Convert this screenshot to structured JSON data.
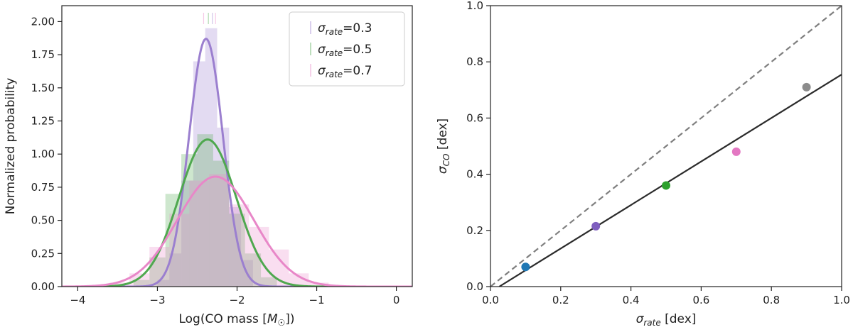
{
  "colors": {
    "purple": "#9b7fcf",
    "green": "#4fa84f",
    "pink": "#e887c8",
    "blue": "#1f77b4",
    "point_purple": "#7f5fbf",
    "point_green": "#2ca02c",
    "point_pink": "#e377c2",
    "point_gray": "#8c8c8c",
    "fit_line": "#2b2b2b",
    "identity_line": "#7f7f7f"
  },
  "chart_data": [
    {
      "type": "histogram",
      "xlabel": "Log(CO mass [",
      "xlabel_unit": "M",
      "xlabel_unit_sub": "☉",
      "xlabel_tail": "])",
      "ylabel": "Normalized probability",
      "xlim": [
        -4.2,
        0.2
      ],
      "ylim": [
        0,
        2.12
      ],
      "xticks": [
        -4,
        -3,
        -2,
        -1,
        0
      ],
      "xtick_labels": [
        "−4",
        "−3",
        "−2",
        "−1",
        "0"
      ],
      "yticks": [
        0,
        0.25,
        0.5,
        0.75,
        1.0,
        1.25,
        1.5,
        1.75,
        2.0
      ],
      "ytick_labels": [
        "0.00",
        "0.25",
        "0.50",
        "0.75",
        "1.00",
        "1.25",
        "1.50",
        "1.75",
        "2.00"
      ],
      "legend": {
        "position": "top-right",
        "entries": [
          {
            "symbol": "σ",
            "sub": "rate",
            "value": "=0.3",
            "color": "purple"
          },
          {
            "symbol": "σ",
            "sub": "rate",
            "value": "=0.5",
            "color": "green"
          },
          {
            "symbol": "σ",
            "sub": "rate",
            "value": "=0.7",
            "color": "pink"
          }
        ]
      },
      "series": [
        {
          "name": "σrate=0.3",
          "color": "purple",
          "gaussian": {
            "mean": -2.39,
            "sigma": 0.213,
            "peak": 1.87
          },
          "bins": [
            {
              "x0": -3.0,
              "x1": -2.85,
              "h": 0.05
            },
            {
              "x0": -2.85,
              "x1": -2.7,
              "h": 0.25
            },
            {
              "x0": -2.7,
              "x1": -2.55,
              "h": 0.8
            },
            {
              "x0": -2.55,
              "x1": -2.4,
              "h": 1.7
            },
            {
              "x0": -2.4,
              "x1": -2.25,
              "h": 1.95
            },
            {
              "x0": -2.25,
              "x1": -2.1,
              "h": 1.2
            },
            {
              "x0": -2.1,
              "x1": -1.95,
              "h": 0.6
            },
            {
              "x0": -1.95,
              "x1": -1.8,
              "h": 0.2
            }
          ]
        },
        {
          "name": "σrate=0.5",
          "color": "green",
          "gaussian": {
            "mean": -2.37,
            "sigma": 0.36,
            "peak": 1.11
          },
          "bins": [
            {
              "x0": -3.3,
              "x1": -3.1,
              "h": 0.05
            },
            {
              "x0": -3.1,
              "x1": -2.9,
              "h": 0.22
            },
            {
              "x0": -2.9,
              "x1": -2.7,
              "h": 0.7
            },
            {
              "x0": -2.7,
              "x1": -2.5,
              "h": 1.0
            },
            {
              "x0": -2.5,
              "x1": -2.3,
              "h": 1.15
            },
            {
              "x0": -2.3,
              "x1": -2.1,
              "h": 0.95
            },
            {
              "x0": -2.1,
              "x1": -1.9,
              "h": 0.55
            },
            {
              "x0": -1.9,
              "x1": -1.7,
              "h": 0.25
            },
            {
              "x0": -1.7,
              "x1": -1.5,
              "h": 0.07
            }
          ]
        },
        {
          "name": "σrate=0.7",
          "color": "pink",
          "gaussian": {
            "mean": -2.27,
            "sigma": 0.48,
            "peak": 0.83
          },
          "bins": [
            {
              "x0": -3.6,
              "x1": -3.35,
              "h": 0.03
            },
            {
              "x0": -3.35,
              "x1": -3.1,
              "h": 0.1
            },
            {
              "x0": -3.1,
              "x1": -2.85,
              "h": 0.3
            },
            {
              "x0": -2.85,
              "x1": -2.6,
              "h": 0.55
            },
            {
              "x0": -2.6,
              "x1": -2.35,
              "h": 0.8
            },
            {
              "x0": -2.35,
              "x1": -2.1,
              "h": 0.85
            },
            {
              "x0": -2.1,
              "x1": -1.85,
              "h": 0.62
            },
            {
              "x0": -1.85,
              "x1": -1.6,
              "h": 0.45
            },
            {
              "x0": -1.6,
              "x1": -1.35,
              "h": 0.28
            },
            {
              "x0": -1.35,
              "x1": -1.1,
              "h": 0.1
            },
            {
              "x0": -1.1,
              "x1": -0.85,
              "h": 0.03
            }
          ]
        }
      ]
    },
    {
      "type": "scatter",
      "xlabel": "σ",
      "xlabel_sub": "rate",
      "xlabel_tail": " [dex]",
      "ylabel": "σ",
      "ylabel_sub": "CO",
      "ylabel_tail": " [dex]",
      "xlim": [
        0,
        1
      ],
      "ylim": [
        0,
        1
      ],
      "xticks": [
        0,
        0.2,
        0.4,
        0.6,
        0.8,
        1.0
      ],
      "xtick_labels": [
        "0.0",
        "0.2",
        "0.4",
        "0.6",
        "0.8",
        "1.0"
      ],
      "yticks": [
        0,
        0.2,
        0.4,
        0.6,
        0.8,
        1.0
      ],
      "ytick_labels": [
        "0.0",
        "0.2",
        "0.4",
        "0.6",
        "0.8",
        "1.0"
      ],
      "points": [
        {
          "x": 0.1,
          "y": 0.07,
          "color": "blue"
        },
        {
          "x": 0.3,
          "y": 0.215,
          "color": "point_purple"
        },
        {
          "x": 0.5,
          "y": 0.36,
          "color": "point_green"
        },
        {
          "x": 0.7,
          "y": 0.48,
          "color": "point_pink"
        },
        {
          "x": 0.9,
          "y": 0.71,
          "color": "point_gray"
        }
      ],
      "fit_line": {
        "x": [
          0.025,
          1.0
        ],
        "y": [
          0.0,
          0.755
        ]
      },
      "identity_line": {
        "x": [
          0,
          1
        ],
        "y": [
          0,
          1
        ]
      }
    }
  ]
}
